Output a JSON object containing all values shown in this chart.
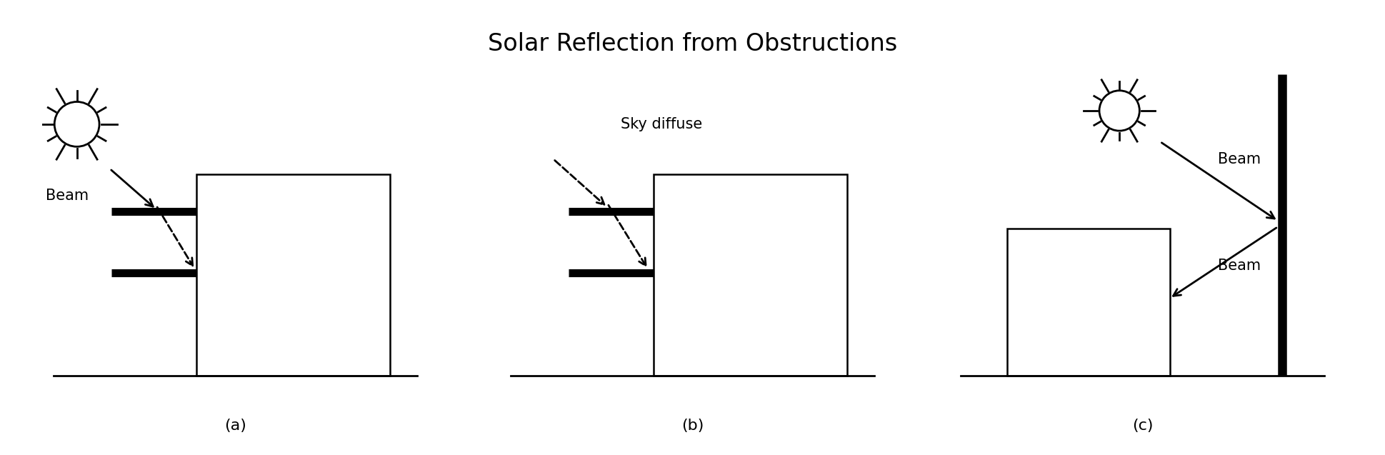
{
  "title": "Solar Reflection from Obstructions",
  "title_fontsize": 24,
  "background_color": "#ffffff",
  "panel_labels": [
    "(a)",
    "(b)",
    "(c)"
  ],
  "label_fontsize": 16,
  "annotation_fontsize": 15
}
